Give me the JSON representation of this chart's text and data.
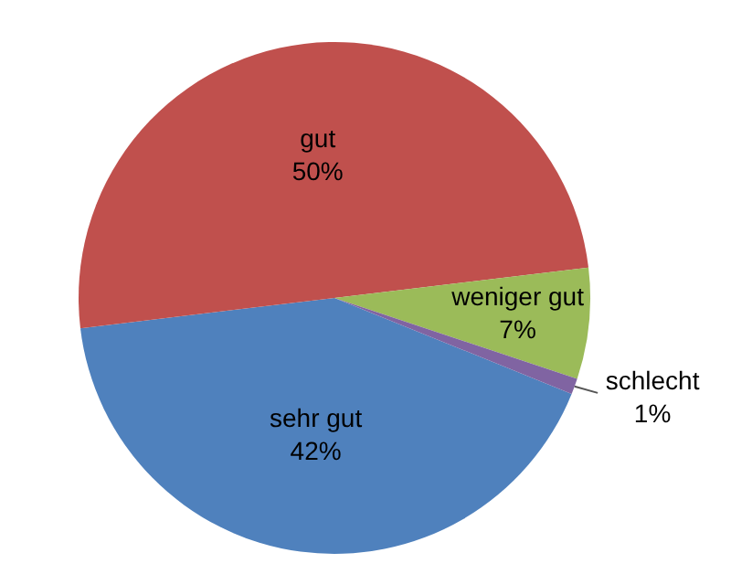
{
  "chart_data": {
    "type": "pie",
    "categories": [
      "sehr gut",
      "gut",
      "weniger gut",
      "schlecht"
    ],
    "values": [
      42,
      50,
      7,
      1
    ],
    "colors": [
      "#4f81bd",
      "#c0504d",
      "#9bbb59",
      "#8064a2"
    ],
    "value_labels": [
      "42%",
      "50%",
      "7%",
      "1%"
    ],
    "legend": false
  }
}
